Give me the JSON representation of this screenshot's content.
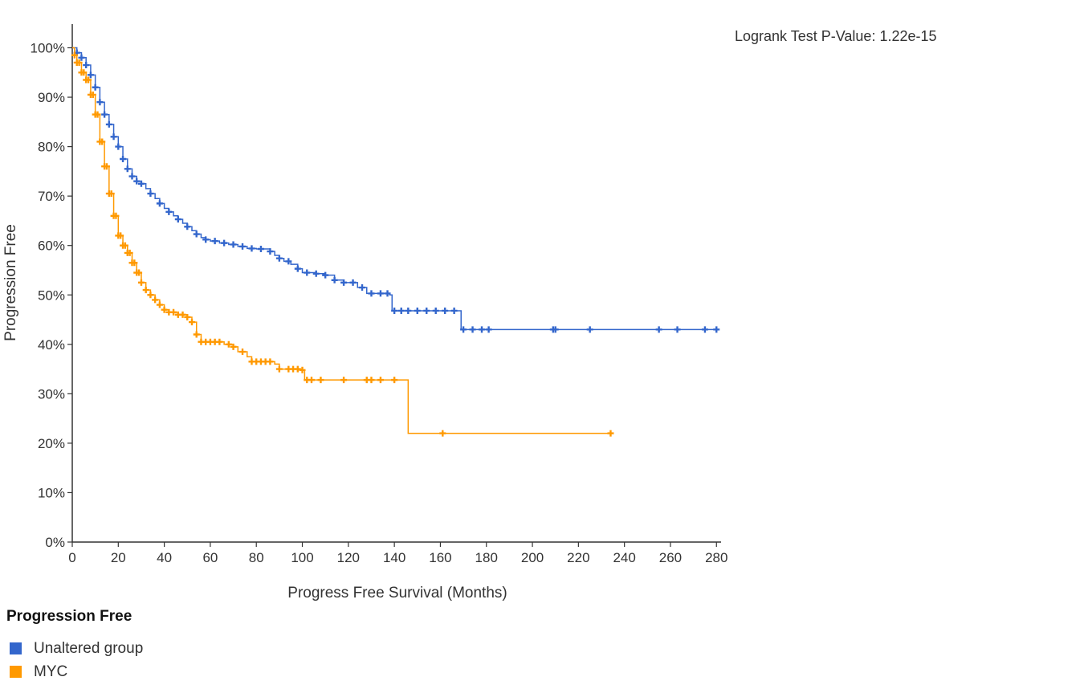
{
  "chart_data": {
    "type": "line",
    "subtype": "kaplan-meier",
    "title": "",
    "xlabel": "Progress Free Survival (Months)",
    "ylabel": "Progression Free",
    "xlim": [
      0,
      282
    ],
    "ylim": [
      0,
      1.03
    ],
    "x_ticks": [
      0,
      20,
      40,
      60,
      80,
      100,
      120,
      140,
      160,
      180,
      200,
      220,
      240,
      260,
      280
    ],
    "y_ticks": [
      0,
      0.1,
      0.2,
      0.3,
      0.4,
      0.5,
      0.6,
      0.7,
      0.8,
      0.9,
      1.0
    ],
    "y_tick_labels": [
      "0%",
      "10%",
      "20%",
      "30%",
      "40%",
      "50%",
      "60%",
      "70%",
      "80%",
      "90%",
      "100%"
    ],
    "x_tick_labels": [
      "0",
      "20",
      "40",
      "60",
      "80",
      "100",
      "120",
      "140",
      "160",
      "180",
      "200",
      "220",
      "240",
      "260",
      "280"
    ],
    "annotation": "Logrank Test P-Value: 1.22e-15",
    "grid": false,
    "legend_title": "Progression Free",
    "legend_position": "bottom-left",
    "series": [
      {
        "name": "Unaltered group",
        "color": "#3366cc",
        "points": [
          [
            0,
            1.0
          ],
          [
            2,
            0.99
          ],
          [
            4,
            0.98
          ],
          [
            6,
            0.965
          ],
          [
            8,
            0.945
          ],
          [
            10,
            0.92
          ],
          [
            12,
            0.89
          ],
          [
            14,
            0.865
          ],
          [
            16,
            0.845
          ],
          [
            18,
            0.82
          ],
          [
            20,
            0.8
          ],
          [
            22,
            0.775
          ],
          [
            24,
            0.755
          ],
          [
            26,
            0.74
          ],
          [
            28,
            0.73
          ],
          [
            30,
            0.725
          ],
          [
            32,
            0.715
          ],
          [
            34,
            0.705
          ],
          [
            36,
            0.695
          ],
          [
            38,
            0.685
          ],
          [
            40,
            0.675
          ],
          [
            42,
            0.668
          ],
          [
            44,
            0.66
          ],
          [
            46,
            0.653
          ],
          [
            48,
            0.645
          ],
          [
            50,
            0.638
          ],
          [
            52,
            0.63
          ],
          [
            54,
            0.623
          ],
          [
            56,
            0.616
          ],
          [
            58,
            0.612
          ],
          [
            60,
            0.609
          ],
          [
            64,
            0.605
          ],
          [
            68,
            0.602
          ],
          [
            72,
            0.598
          ],
          [
            76,
            0.594
          ],
          [
            80,
            0.593
          ],
          [
            84,
            0.593
          ],
          [
            86,
            0.588
          ],
          [
            88,
            0.58
          ],
          [
            90,
            0.574
          ],
          [
            92,
            0.568
          ],
          [
            95,
            0.562
          ],
          [
            98,
            0.553
          ],
          [
            100,
            0.545
          ],
          [
            106,
            0.543
          ],
          [
            110,
            0.54
          ],
          [
            114,
            0.53
          ],
          [
            118,
            0.525
          ],
          [
            124,
            0.515
          ],
          [
            128,
            0.503
          ],
          [
            138,
            0.5
          ],
          [
            139,
            0.468
          ],
          [
            150,
            0.468
          ],
          [
            168,
            0.468
          ],
          [
            169,
            0.43
          ],
          [
            281,
            0.43
          ]
        ],
        "censor_x": [
          2,
          4,
          6,
          8,
          10,
          12,
          14,
          16,
          18,
          20,
          22,
          24,
          26,
          28,
          30,
          34,
          38,
          42,
          46,
          50,
          54,
          58,
          62,
          66,
          70,
          74,
          78,
          82,
          86,
          90,
          94,
          98,
          102,
          106,
          110,
          114,
          118,
          122,
          126,
          130,
          134,
          137,
          140,
          143,
          146,
          150,
          154,
          158,
          162,
          166,
          170,
          174,
          178,
          181,
          209,
          210,
          225,
          255,
          263,
          275,
          280
        ]
      },
      {
        "name": "MYC",
        "color": "#ff9900",
        "points": [
          [
            0,
            1.0
          ],
          [
            1,
            0.985
          ],
          [
            2,
            0.97
          ],
          [
            4,
            0.95
          ],
          [
            6,
            0.935
          ],
          [
            8,
            0.905
          ],
          [
            10,
            0.865
          ],
          [
            12,
            0.81
          ],
          [
            14,
            0.76
          ],
          [
            16,
            0.705
          ],
          [
            18,
            0.66
          ],
          [
            20,
            0.62
          ],
          [
            22,
            0.6
          ],
          [
            24,
            0.585
          ],
          [
            26,
            0.565
          ],
          [
            28,
            0.545
          ],
          [
            30,
            0.525
          ],
          [
            32,
            0.51
          ],
          [
            34,
            0.5
          ],
          [
            36,
            0.49
          ],
          [
            38,
            0.48
          ],
          [
            40,
            0.47
          ],
          [
            42,
            0.465
          ],
          [
            46,
            0.46
          ],
          [
            50,
            0.455
          ],
          [
            52,
            0.445
          ],
          [
            54,
            0.42
          ],
          [
            56,
            0.405
          ],
          [
            62,
            0.405
          ],
          [
            66,
            0.4
          ],
          [
            70,
            0.395
          ],
          [
            72,
            0.385
          ],
          [
            76,
            0.375
          ],
          [
            78,
            0.365
          ],
          [
            88,
            0.36
          ],
          [
            90,
            0.35
          ],
          [
            100,
            0.348
          ],
          [
            101,
            0.328
          ],
          [
            145,
            0.328
          ],
          [
            146,
            0.22
          ],
          [
            234,
            0.22
          ]
        ],
        "censor_x": [
          1,
          2,
          3,
          4,
          5,
          6,
          7,
          8,
          9,
          10,
          11,
          12,
          13,
          14,
          15,
          16,
          17,
          18,
          19,
          20,
          21,
          22,
          23,
          24,
          25,
          26,
          27,
          28,
          29,
          30,
          32,
          34,
          36,
          38,
          40,
          42,
          44,
          46,
          48,
          50,
          52,
          54,
          56,
          58,
          60,
          62,
          64,
          68,
          70,
          74,
          78,
          80,
          82,
          84,
          86,
          90,
          94,
          96,
          98,
          100,
          102,
          104,
          108,
          118,
          128,
          130,
          134,
          140,
          161,
          234
        ]
      }
    ]
  }
}
